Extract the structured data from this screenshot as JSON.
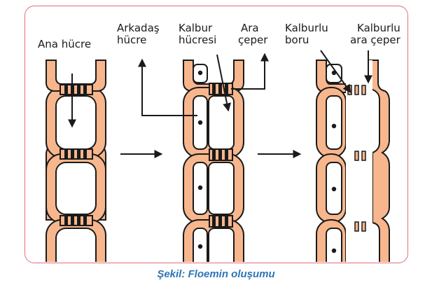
{
  "labels": {
    "ana_hucre": "Ana hücre",
    "arkadas_hucre": [
      "Arkadaş",
      "hücre"
    ],
    "kalbur_hucresi": [
      "Kalbur",
      "hücresi"
    ],
    "ara_ceper": [
      "Ara",
      "çeper"
    ],
    "kalburlu_boru": [
      "Kalburlu",
      "boru"
    ],
    "kalburlu_ara_ceper": [
      "Kalburlu",
      "ara çeper"
    ]
  },
  "caption": "Şekil: Floemin oluşumu",
  "colors": {
    "wall": "#f7b68c",
    "stroke": "#1a1a1a",
    "frame": "#e0707a",
    "caption": "#2e75b6"
  }
}
